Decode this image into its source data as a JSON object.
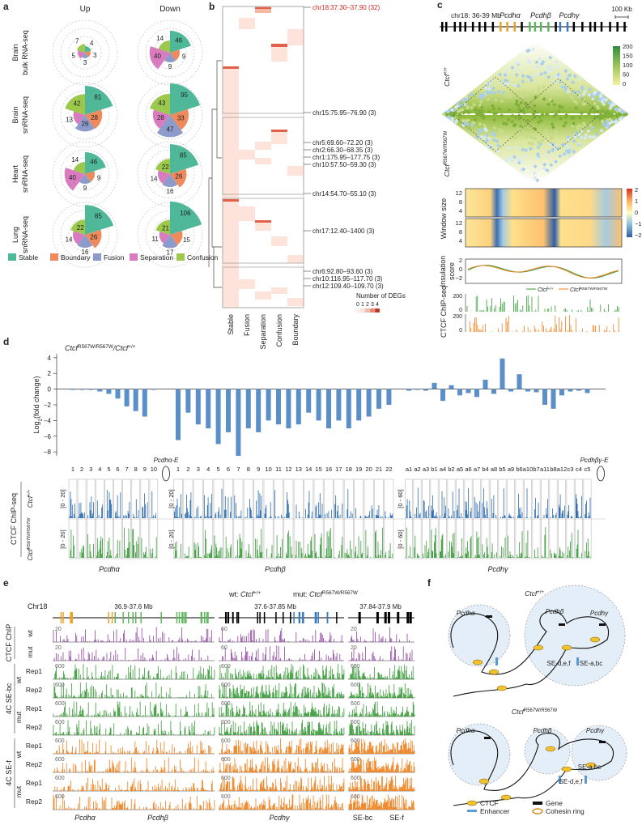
{
  "genotype": {
    "gene": "Ctcf",
    "wt": "+/+",
    "mut": "R567W/R567W"
  },
  "panel_a": {
    "label": "a",
    "columns": [
      "Up",
      "Down"
    ],
    "rows": [
      {
        "name": [
          "Brain",
          "bulk RNA-seq"
        ],
        "up": [
          4,
          3,
          3,
          5,
          7
        ],
        "down": [
          46,
          9,
          9,
          40,
          14
        ]
      },
      {
        "name": [
          "Brain",
          "snRNA-seq"
        ],
        "up": [
          81,
          28,
          26,
          13,
          42
        ],
        "down": [
          95,
          33,
          47,
          28,
          43
        ]
      },
      {
        "name": [
          "Heart",
          "snRNA-seq"
        ],
        "up": [
          46,
          9,
          9,
          40,
          14
        ],
        "down": [
          85,
          26,
          16,
          14,
          22
        ]
      },
      {
        "name": [
          "Lung",
          "snRNA-seq"
        ],
        "up": [
          85,
          26,
          16,
          14,
          22
        ],
        "down": [
          106,
          15,
          17,
          11,
          21
        ]
      }
    ],
    "legend": [
      {
        "name": "Stable",
        "color": "#4fb899"
      },
      {
        "name": "Boundary",
        "color": "#ef8a5d"
      },
      {
        "name": "Fusion",
        "color": "#8d9bcb"
      },
      {
        "name": "Separation",
        "color": "#d97cbf"
      },
      {
        "name": "Confusion",
        "color": "#9cc84c"
      }
    ]
  },
  "panel_b": {
    "label": "b",
    "regions": [
      {
        "text": "chr18:37.30–37.90 (32)",
        "color": "#d7261e"
      },
      {
        "text": "chr15:75.95–76.90 (3)"
      },
      {
        "text": "chr5:69.60–72.20 (3)"
      },
      {
        "text": "chr2:66.30–68.35 (3)"
      },
      {
        "text": "chr1:175.95–177.75 (3)"
      },
      {
        "text": "chr10:57.50–59.30 (3)"
      },
      {
        "text": "chr14:54.70–55.10 (3)"
      },
      {
        "text": "chr17:12.40–1400 (3)"
      },
      {
        "text": "chr6:92.80–93.60 (3)"
      },
      {
        "text": "chr10:116.95–117.70 (3)"
      },
      {
        "text": "chr12:109.40–109.70 (3)"
      }
    ],
    "columns": [
      "Stable",
      "Fusion",
      "Separation",
      "Confusion",
      "Boundary"
    ],
    "legend_title": "Number of DEGs",
    "legend_ticks": [
      0,
      1,
      2,
      3,
      4
    ]
  },
  "panel_c": {
    "label": "c",
    "locus": "chr18: 36-39 Mb",
    "genes": [
      "Pcdhα",
      "Pcdhβ",
      "Pcdhγ"
    ],
    "scale": "100 Kb",
    "hic_colorbar": [
      "200",
      "150",
      "100",
      "50",
      "0"
    ],
    "window_label": "Window size",
    "window_ticks": [
      "12",
      "8",
      "4"
    ],
    "di_colorbar": [
      "2",
      "1",
      "0",
      "−1",
      "−2"
    ],
    "insulation_label": [
      "Insulation",
      "score"
    ],
    "insulation_ticks": [
      "2",
      "0",
      "−2"
    ],
    "chip_label": "CTCF ChIP-seq",
    "chip_ticks": [
      "200",
      "0"
    ]
  },
  "panel_d": {
    "label": "d",
    "title_sep": "/",
    "ylabel": [
      "Log",
      "2",
      "(fold change)"
    ],
    "ylim": [
      -8.5,
      4.5
    ],
    "yticks": [
      4,
      2,
      0,
      {
        "value": -2,
        "label": "−2"
      },
      {
        "value": -4,
        "label": "−4"
      },
      {
        "value": -6,
        "label": "−6"
      },
      {
        "value": -8,
        "label": "−8"
      }
    ],
    "color": "#5b8fc7",
    "groups": [
      {
        "name": "Pcdhα",
        "genes": [
          "1",
          "2",
          "3",
          "4",
          "5",
          "6",
          "7",
          "8",
          "9",
          "10"
        ],
        "values": [
          -0.1,
          -0.1,
          -0.1,
          -0.3,
          -0.6,
          -1.2,
          -2.2,
          -2.8,
          -3.5,
          -0.1
        ]
      },
      {
        "name": "Pcdhβ",
        "genes": [
          "1",
          "2",
          "3",
          "4",
          "5",
          "6",
          "7",
          "8",
          "9",
          "10",
          "11",
          "12",
          "13",
          "14",
          "15",
          "16",
          "17",
          "18",
          "19",
          "20",
          "21",
          "22"
        ],
        "values": [
          -6.5,
          -3,
          -4.5,
          -5,
          -7,
          -5.5,
          -8.5,
          -5,
          -5.5,
          -4,
          -4.5,
          -5,
          -4.5,
          -3,
          -4,
          -5,
          -4,
          -5,
          -4,
          -3.5,
          -2.5,
          -2
        ]
      },
      {
        "name": "Pcdhγ",
        "genes": [
          "a1",
          "a2",
          "a3",
          "b1",
          "a4",
          "b2",
          "a5",
          "a6",
          "a7",
          "b4",
          "a8",
          "b5",
          "a9",
          "b6",
          "a10",
          "b7",
          "a11",
          "b8",
          "a12",
          "c3",
          "c4",
          "c5"
        ],
        "values": [
          -0.2,
          -0.1,
          -0.2,
          0.8,
          -1.5,
          0.5,
          -0.8,
          -0.5,
          -1,
          1.2,
          -0.6,
          3.9,
          -0.3,
          1.9,
          -0.3,
          -0.4,
          -2,
          -2.5,
          -0.8,
          -0.3,
          -0.2,
          -0.5
        ]
      }
    ],
    "enhancers": [
      "Pcdhα-E",
      "Pcdhβγ-E"
    ],
    "chip_label": "CTCF ChIP-seq",
    "ranges": [
      "[0 - 20]",
      "[0 - 60]"
    ]
  },
  "panel_e": {
    "label": "e",
    "chrom": "Chr18",
    "wt_prefix": "wt: ",
    "mut_prefix": "mut: ",
    "windows": [
      "36.9-37.6 Mb",
      "37.6-37.85 Mb",
      "37.84-37.9 Mb"
    ],
    "groups": [
      {
        "name": "CTCF ChIP",
        "conditions": [
          "wt",
          "mut"
        ],
        "scales": [
          "20",
          "60",
          "20"
        ],
        "color": "#8e44a0"
      },
      {
        "name": "4C SE-bc",
        "conditions": [
          "wt",
          "mut"
        ],
        "reps": [
          "Rep1",
          "Rep2"
        ],
        "scales": [
          "600",
          "600",
          "600"
        ],
        "color": "#3a9b3a"
      },
      {
        "name": "4C SE-f",
        "conditions": [
          "wt",
          "mut"
        ],
        "reps": [
          "Rep1",
          "Rep2"
        ],
        "scales": [
          "600",
          "600",
          "600"
        ],
        "color": "#ef7f1a"
      }
    ],
    "bottom": [
      "Pcdhα",
      "Pcdhβ",
      "Pcdhγ",
      "SE-bc",
      "SE-f"
    ]
  },
  "panel_f": {
    "label": "f",
    "labels": [
      "Pcdhα",
      "Pcdhβ",
      "Pcdhγ",
      "SE-d,e,f",
      "SE-a,bc"
    ],
    "legend": [
      "CTCF",
      "Enhancer",
      "Gene",
      "Cohesin ring"
    ]
  }
}
